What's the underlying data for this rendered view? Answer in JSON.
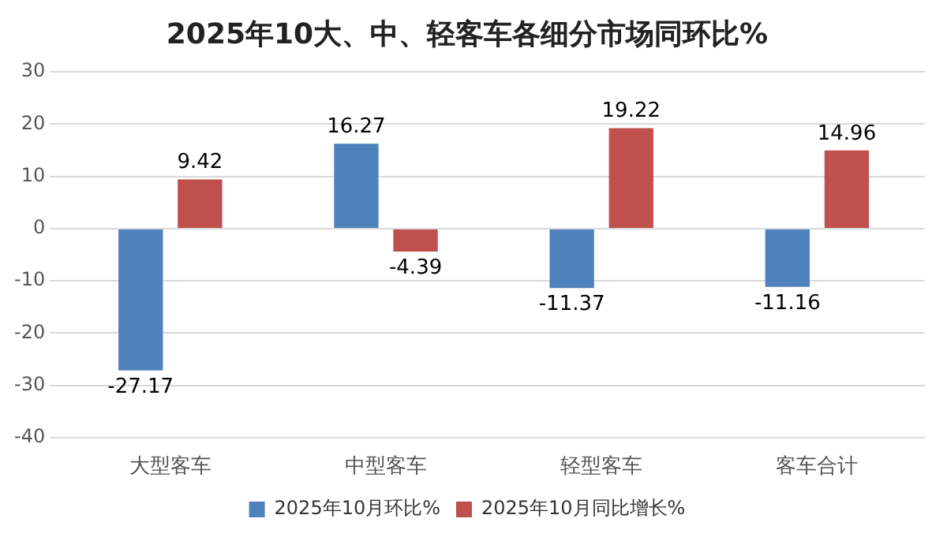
{
  "chart_data": {
    "type": "bar",
    "title": "2025年10大、中、轻客车各细分市场同环比%",
    "categories": [
      "大型客车",
      "中型客车",
      "轻型客车",
      "客车合计"
    ],
    "series": [
      {
        "name": "2025年10月环比%",
        "color": "#4f81bd",
        "values": [
          -27.17,
          16.27,
          -11.37,
          -11.16
        ]
      },
      {
        "name": "2025年10月同比增长%",
        "color": "#c0504d",
        "values": [
          9.42,
          -4.39,
          19.22,
          14.96
        ]
      }
    ],
    "ylim": [
      -40,
      30
    ],
    "yticks": [
      -40,
      -30,
      -20,
      -10,
      0,
      10,
      20,
      30
    ],
    "grid": "y",
    "legend": "bottom",
    "data_labels": true
  }
}
